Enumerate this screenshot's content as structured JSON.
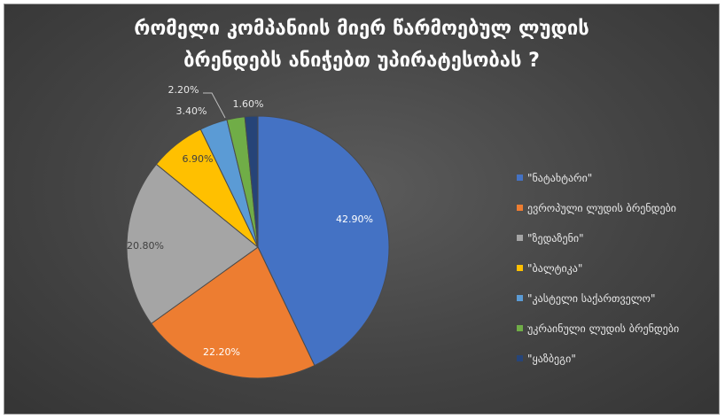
{
  "chart_data": {
    "type": "pie",
    "title_lines": [
      "რომელი კომპანიის მიერ წარმოებულ ლუდის",
      "ბრენდებს ანიჭებთ უპირატესობას ?"
    ],
    "categories": [
      "\"ნატახტარი\"",
      "ევროპული ლუდის ბრენდები",
      "\"ზედაზენი\"",
      "\"ბალტიკა\"",
      "\"კასტელი საქართველო\"",
      "უკრაინული ლუდის ბრენდები",
      "\"ყაზბეგი\""
    ],
    "values": [
      42.9,
      22.2,
      20.8,
      6.9,
      3.4,
      2.2,
      1.6
    ],
    "data_labels": [
      "42.90%",
      "22.20%",
      "20.80%",
      "6.90%",
      "3.40%",
      "2.20%",
      "1.60%"
    ],
    "colors": [
      "#4472C4",
      "#ED7D31",
      "#A5A5A5",
      "#FFC000",
      "#5B9BD5",
      "#70AD47",
      "#264478"
    ],
    "legend_position": "right",
    "start_angle_deg": 0,
    "direction": "clockwise"
  }
}
